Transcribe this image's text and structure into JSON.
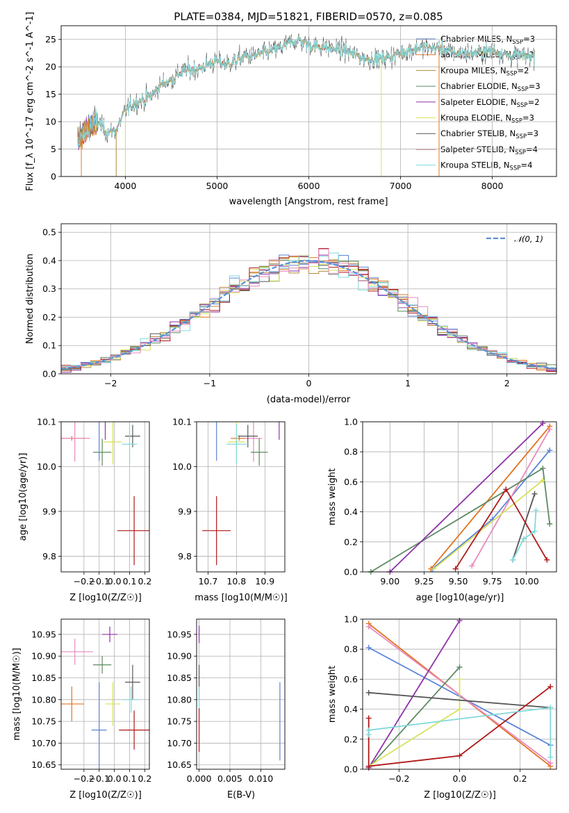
{
  "title": "PLATE=0384, MJD=51821, FIBERID=0570, z=0.085",
  "colors": {
    "Chabrier MILES": "#5b85d6",
    "Salpeter MILES": "#e07b2a",
    "Kroupa MILES": "#b08a3a",
    "Chabrier ELODIE": "#5a8a5a",
    "Salpeter ELODIE": "#8e30a8",
    "Kroupa ELODIE": "#d8e25a",
    "Chabrier STELIB": "#555555",
    "Salpeter STELIB": "#b01818",
    "Kroupa STELIB": "#7fd9db",
    "Pink": "#e889bd",
    "Orange": "#e37420",
    "Green": "#5d8a62"
  },
  "legend1": [
    {
      "name": "Chabrier MILES",
      "nssp": "3"
    },
    {
      "name": "Salpeter MILES",
      "nssp": "2"
    },
    {
      "name": "Kroupa MILES",
      "nssp": "2"
    },
    {
      "name": "Chabrier ELODIE",
      "nssp": "3"
    },
    {
      "name": "Salpeter ELODIE",
      "nssp": "2"
    },
    {
      "name": "Kroupa ELODIE",
      "nssp": "3"
    },
    {
      "name": "Chabrier STELIB",
      "nssp": "3"
    },
    {
      "name": "Salpeter STELIB",
      "nssp": "4"
    },
    {
      "name": "Kroupa STELIB",
      "nssp": "4"
    }
  ],
  "legend2": "𝒩(0, 1)",
  "chart_data": [
    {
      "type": "line",
      "panel": "spectrum",
      "xlabel": "wavelength [Angstrom, rest frame]",
      "ylabel": "Flux [f_λ 10^-17 erg cm^-2 s^-1 A^-1]",
      "xlim": [
        3300,
        8700
      ],
      "ylim": [
        0,
        27.5
      ],
      "xticks": [
        4000,
        5000,
        6000,
        7000,
        8000
      ],
      "yticks": [
        0,
        5,
        10,
        15,
        20,
        25
      ],
      "anchors_x": [
        3500,
        3600,
        3700,
        3800,
        3900,
        4000,
        4100,
        4200,
        4300,
        4400,
        4500,
        4600,
        4700,
        4800,
        4900,
        5000,
        5100,
        5200,
        5300,
        5400,
        5500,
        5600,
        5700,
        5800,
        5900,
        6000,
        6200,
        6400,
        6600,
        6800,
        7000,
        7200,
        7400,
        7600,
        7800,
        8000,
        8200,
        8400
      ],
      "anchors_y": [
        7,
        9,
        10,
        8,
        8.5,
        12,
        13.5,
        14,
        15,
        17,
        17.5,
        19,
        19.5,
        19.5,
        20.5,
        21,
        20.5,
        21,
        22,
        22,
        22.5,
        23,
        23.5,
        24.5,
        24.8,
        24,
        23.5,
        23,
        21.5,
        21.5,
        22.5,
        23.5,
        23.5,
        22.5,
        22.5,
        23,
        22,
        22
      ]
    },
    {
      "type": "histogram",
      "panel": "residuals",
      "xlabel": "(data-model)/error",
      "ylabel": "Normed distribution",
      "xlim": [
        -2.5,
        2.5
      ],
      "ylim": [
        0,
        0.53
      ],
      "xticks": [
        -2,
        -1,
        0,
        1,
        2
      ],
      "yticks": [
        0.0,
        0.1,
        0.2,
        0.3,
        0.4,
        0.5
      ],
      "bin_width": 0.1,
      "reference": "normal(0,1)"
    },
    {
      "type": "scatter",
      "panel": "age_vs_Z",
      "xlabel": "Z [log10(Z/Z☉)]",
      "ylabel": "age [log10(age/yr)]",
      "xlim": [
        -0.35,
        0.23
      ],
      "ylim": [
        9.765,
        10.1
      ],
      "xticks": [
        -0.2,
        -0.1,
        0.0,
        0.1,
        0.2
      ],
      "yticks": [
        9.8,
        9.9,
        10.0,
        10.1
      ],
      "points": [
        {
          "color": "Orange",
          "x": -0.28,
          "y": 10.063,
          "xerr": 0.09,
          "yerr": 0.005
        },
        {
          "color": "Pink",
          "x": -0.26,
          "y": 10.063,
          "xerr": 0.1,
          "yerr": 0.052
        },
        {
          "color": "Chabrier ELODIE",
          "x": -0.08,
          "y": 10.032,
          "xerr": 0.06,
          "yerr": 0.03
        },
        {
          "color": "Chabrier MILES",
          "x": -0.1,
          "y": 10.108,
          "xerr": 0.05,
          "yerr": 0.095
        },
        {
          "color": "Salpeter ELODIE",
          "x": -0.06,
          "y": 10.11,
          "xerr": 0.05,
          "yerr": 0.05
        },
        {
          "color": "Kroupa ELODIE",
          "x": -0.01,
          "y": 10.055,
          "xerr": 0.06,
          "yerr": 0.05
        },
        {
          "color": "Chabrier STELIB",
          "x": 0.12,
          "y": 10.068,
          "xerr": 0.05,
          "yerr": 0.025
        },
        {
          "color": "Kroupa STELIB",
          "x": 0.1,
          "y": 10.05,
          "xerr": 0.05,
          "yerr": 0.045
        },
        {
          "color": "Salpeter STELIB",
          "x": 0.13,
          "y": 9.857,
          "xerr": 0.11,
          "yerr": 0.077
        }
      ]
    },
    {
      "type": "scatter",
      "panel": "age_vs_mass",
      "xlabel": "mass [log10(M/M☉)]",
      "ylabel": "",
      "xlim": [
        10.66,
        10.97
      ],
      "ylim": [
        9.765,
        10.1
      ],
      "xticks": [
        10.7,
        10.8,
        10.9
      ],
      "yticks": [
        9.8,
        9.9,
        10.0,
        10.1
      ],
      "points": [
        {
          "color": "Orange",
          "x": 10.81,
          "y": 10.063,
          "xerr": 0.03,
          "yerr": 0.005
        },
        {
          "color": "Pink",
          "x": 10.86,
          "y": 10.063,
          "xerr": 0.03,
          "yerr": 0.052
        },
        {
          "color": "Chabrier ELODIE",
          "x": 10.88,
          "y": 10.032,
          "xerr": 0.03,
          "yerr": 0.03
        },
        {
          "color": "Chabrier MILES",
          "x": 10.73,
          "y": 10.108,
          "xerr": 0.1,
          "yerr": 0.095
        },
        {
          "color": "Salpeter ELODIE",
          "x": 10.95,
          "y": 10.11,
          "xerr": 0.03,
          "yerr": 0.05
        },
        {
          "color": "Kroupa ELODIE",
          "x": 10.8,
          "y": 10.055,
          "xerr": 0.03,
          "yerr": 0.05
        },
        {
          "color": "Chabrier STELIB",
          "x": 10.84,
          "y": 10.068,
          "xerr": 0.035,
          "yerr": 0.025
        },
        {
          "color": "Kroupa STELIB",
          "x": 10.8,
          "y": 10.05,
          "xerr": 0.035,
          "yerr": 0.045
        },
        {
          "color": "Salpeter STELIB",
          "x": 10.73,
          "y": 9.857,
          "xerr": 0.05,
          "yerr": 0.077
        }
      ]
    },
    {
      "type": "line",
      "panel": "weight_vs_age",
      "xlabel": "age [log10(age/yr)]",
      "ylabel": "mass weight",
      "xlim": [
        8.8,
        10.22
      ],
      "ylim": [
        0,
        1
      ],
      "xticks": [
        9.0,
        9.25,
        9.5,
        9.75,
        10.0
      ],
      "yticks": [
        0.0,
        0.2,
        0.4,
        0.6,
        0.8,
        1.0
      ],
      "series": [
        {
          "color": "Chabrier MILES",
          "x": [
            9.31,
            9.75,
            10.17
          ],
          "y": [
            0.02,
            0.35,
            0.81
          ]
        },
        {
          "color": "Orange",
          "x": [
            9.3,
            10.17
          ],
          "y": [
            0.02,
            0.97
          ]
        },
        {
          "color": "Pink",
          "x": [
            9.6,
            10.17
          ],
          "y": [
            0.04,
            0.95
          ]
        },
        {
          "color": "Green",
          "x": [
            8.86,
            10.12,
            10.17
          ],
          "y": [
            0.0,
            0.69,
            0.32
          ]
        },
        {
          "color": "Salpeter ELODIE",
          "x": [
            9.0,
            10.12
          ],
          "y": [
            0.0,
            0.99
          ]
        },
        {
          "color": "Kroupa ELODIE",
          "x": [
            9.32,
            10.12
          ],
          "y": [
            0.02,
            0.61
          ]
        },
        {
          "color": "Chabrier STELIB",
          "x": [
            9.9,
            10.06
          ],
          "y": [
            0.08,
            0.52
          ]
        },
        {
          "color": "Salpeter STELIB",
          "x": [
            9.48,
            9.85,
            10.15
          ],
          "y": [
            0.02,
            0.55,
            0.08
          ]
        },
        {
          "color": "Kroupa STELIB",
          "x": [
            9.9,
            9.98,
            10.06,
            10.07
          ],
          "y": [
            0.08,
            0.22,
            0.27,
            0.41
          ]
        }
      ]
    },
    {
      "type": "scatter",
      "panel": "mass_vs_Z",
      "xlabel": "Z [log10(Z/Z☉)]",
      "ylabel": "mass [log10(M/M☉)]",
      "xlim": [
        -0.35,
        0.23
      ],
      "ylim": [
        10.64,
        10.985
      ],
      "xticks": [
        -0.2,
        -0.1,
        0.0,
        0.1,
        0.2
      ],
      "yticks": [
        10.65,
        10.7,
        10.75,
        10.8,
        10.85,
        10.9,
        10.95
      ],
      "points": [
        {
          "color": "Salpeter ELODIE",
          "x": -0.03,
          "y": 10.95,
          "xerr": 0.05,
          "yerr": 0.018
        },
        {
          "color": "Pink",
          "x": -0.26,
          "y": 10.91,
          "xerr": 0.12,
          "yerr": 0.03
        },
        {
          "color": "Chabrier ELODIE",
          "x": -0.08,
          "y": 10.88,
          "xerr": 0.06,
          "yerr": 0.02
        },
        {
          "color": "Chabrier STELIB",
          "x": 0.12,
          "y": 10.84,
          "xerr": 0.05,
          "yerr": 0.04
        },
        {
          "color": "Kroupa STELIB",
          "x": 0.11,
          "y": 10.8,
          "xerr": 0.05,
          "yerr": 0.03
        },
        {
          "color": "Kroupa ELODIE",
          "x": -0.01,
          "y": 10.79,
          "xerr": 0.05,
          "yerr": 0.05
        },
        {
          "color": "Orange",
          "x": -0.28,
          "y": 10.79,
          "xerr": 0.08,
          "yerr": 0.04
        },
        {
          "color": "Chabrier MILES",
          "x": -0.1,
          "y": 10.73,
          "xerr": 0.05,
          "yerr": 0.11
        },
        {
          "color": "Salpeter STELIB",
          "x": 0.13,
          "y": 10.73,
          "xerr": 0.1,
          "yerr": 0.045
        }
      ]
    },
    {
      "type": "scatter",
      "panel": "mass_vs_EBV",
      "xlabel": "E(B-V)",
      "ylabel": "",
      "xlim": [
        -0.0004,
        0.0139
      ],
      "ylim": [
        10.64,
        10.985
      ],
      "xticks": [
        0.0,
        0.005,
        0.01
      ],
      "xticklabels": [
        "0.000",
        "0.005",
        "0.010"
      ],
      "yticks": [
        10.65,
        10.7,
        10.75,
        10.8,
        10.85,
        10.9,
        10.95
      ],
      "points": [
        {
          "color": "Salpeter ELODIE",
          "x": 0.0,
          "y": 10.95,
          "xerr": 0,
          "yerr": 0.02
        },
        {
          "color": "Chabrier STELIB",
          "x": 0.0,
          "y": 10.84,
          "xerr": 0,
          "yerr": 0.04
        },
        {
          "color": "Kroupa STELIB",
          "x": 0.0,
          "y": 10.8,
          "xerr": 0,
          "yerr": 0.03
        },
        {
          "color": "Salpeter STELIB",
          "x": 0.0,
          "y": 10.73,
          "xerr": 0,
          "yerr": 0.05
        },
        {
          "color": "Chabrier MILES",
          "x": 0.0131,
          "y": 10.75,
          "xerr": 0,
          "yerr": 0.09
        }
      ]
    },
    {
      "type": "line",
      "panel": "weight_vs_Z",
      "xlabel": "Z [log10(Z/Z☉)]",
      "ylabel": "mass weight",
      "xlim": [
        -0.32,
        0.32
      ],
      "ylim": [
        0,
        1
      ],
      "xticks": [
        -0.2,
        0.0,
        0.2
      ],
      "yticks": [
        0.0,
        0.2,
        0.4,
        0.6,
        0.8,
        1.0
      ],
      "series": [
        {
          "color": "Chabrier MILES",
          "x": [
            -0.3,
            0.3
          ],
          "y": [
            0.81,
            0.16
          ]
        },
        {
          "color": "Orange",
          "x": [
            -0.3,
            0.3
          ],
          "y": [
            0.97,
            0.02
          ]
        },
        {
          "color": "Pink",
          "x": [
            -0.3,
            0.3
          ],
          "y": [
            0.95,
            0.04
          ]
        },
        {
          "color": "Green",
          "x": [
            -0.3,
            0.0
          ],
          "y": [
            0.01,
            0.68
          ]
        },
        {
          "color": "Salpeter ELODIE",
          "x": [
            -0.3,
            0.0
          ],
          "y": [
            0.01,
            0.99
          ]
        },
        {
          "color": "Kroupa ELODIE",
          "x": [
            -0.3,
            0.0,
            0.0
          ],
          "y": [
            0.02,
            0.4,
            0.6
          ]
        },
        {
          "color": "Chabrier STELIB",
          "x": [
            -0.3,
            0.3
          ],
          "y": [
            0.51,
            0.41
          ]
        },
        {
          "color": "Salpeter STELIB",
          "x": [
            -0.3,
            -0.3,
            0.0,
            0.3
          ],
          "y": [
            0.34,
            0.02,
            0.09,
            0.55
          ]
        },
        {
          "color": "Kroupa STELIB",
          "x": [
            -0.3,
            -0.3,
            0.3,
            0.3
          ],
          "y": [
            0.23,
            0.26,
            0.41,
            0.08
          ]
        }
      ]
    }
  ]
}
